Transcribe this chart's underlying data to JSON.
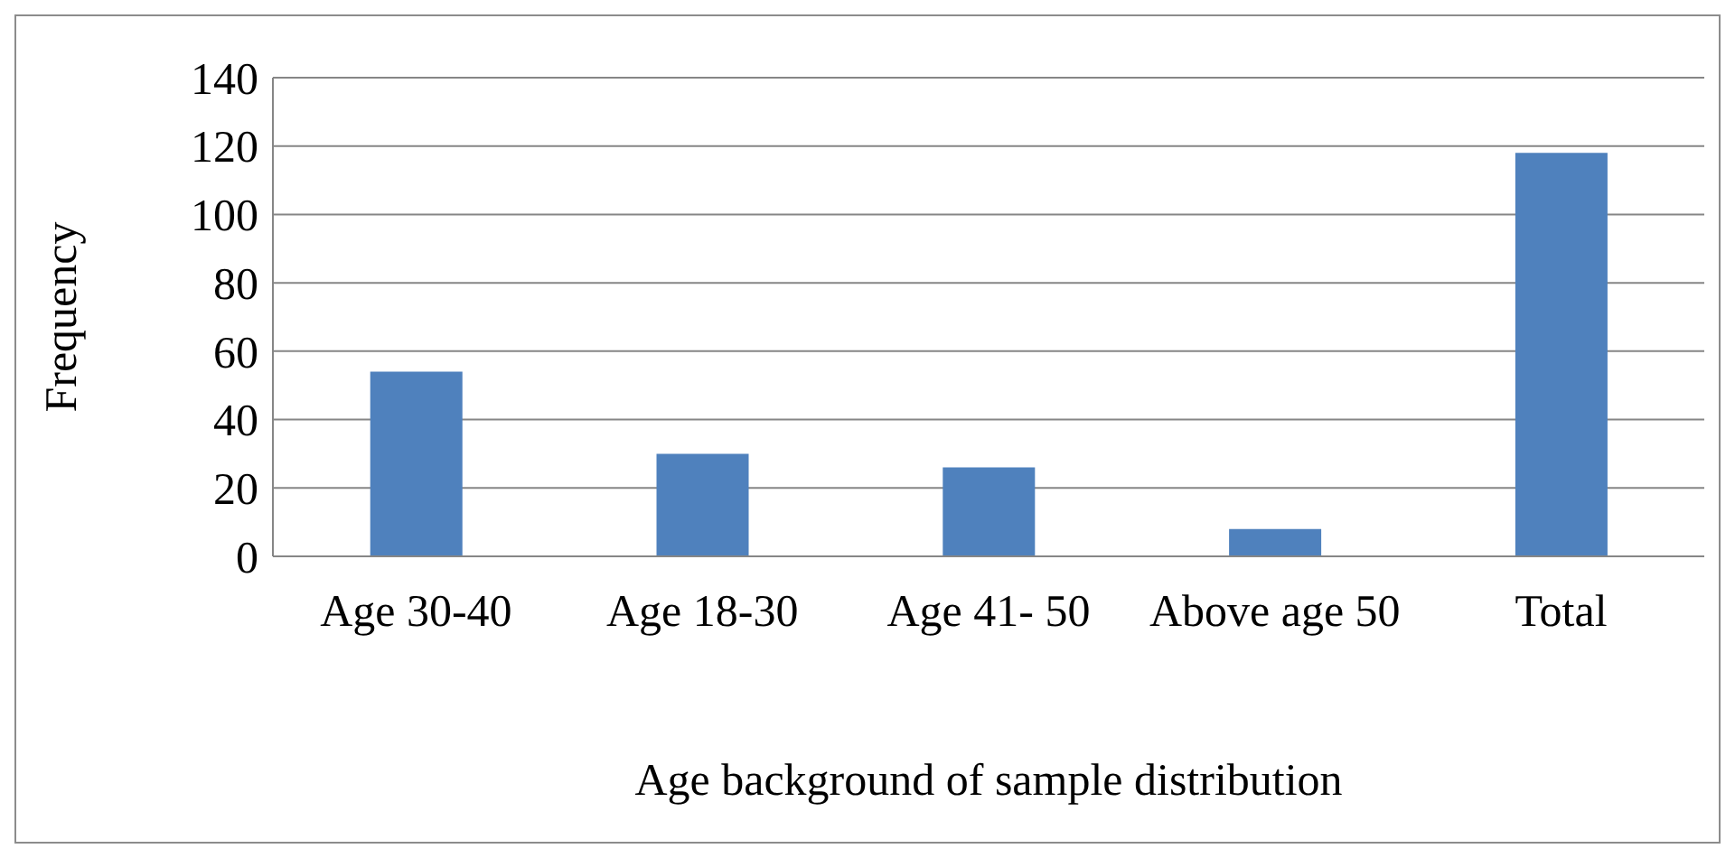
{
  "chart_data": {
    "type": "bar",
    "xlabel": "Age background of sample distribution",
    "ylabel": "Frequency",
    "categories": [
      "Age 30-40",
      "Age 18-30",
      "Age 41- 50",
      "Above age 50",
      "Total"
    ],
    "values": [
      54,
      30,
      26,
      8,
      118
    ],
    "color": "#4f81bd",
    "ylim": [
      0,
      140
    ],
    "yticks": [
      0,
      20,
      40,
      60,
      80,
      100,
      120,
      140
    ],
    "grid": "y",
    "legend": false
  }
}
